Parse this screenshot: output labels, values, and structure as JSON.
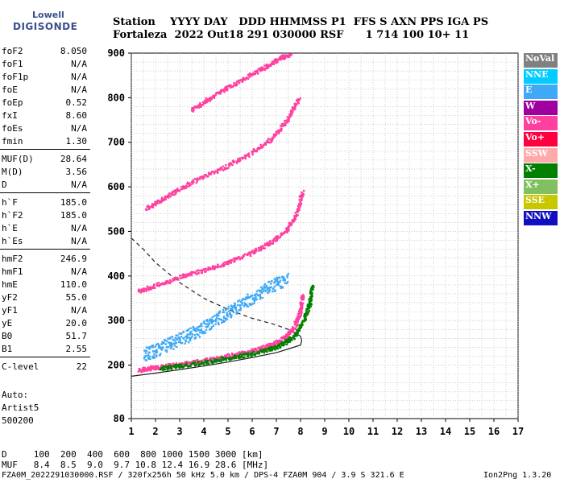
{
  "logo": {
    "line1": "Lowell",
    "line2": "DIGISONDE"
  },
  "header": {
    "columns": "Station    YYYY DAY   DDD HHMMSS P1  FFS S AXN PPS IGA PS",
    "values": "Fortaleza  2022 Out18 291 030000 RSF      1 714 100 10+ 11"
  },
  "params": [
    {
      "k": "foF2",
      "v": "8.050"
    },
    {
      "k": "foF1",
      "v": "N/A"
    },
    {
      "k": "foF1p",
      "v": "N/A"
    },
    {
      "k": "foE",
      "v": "N/A"
    },
    {
      "k": "foEp",
      "v": "0.52"
    },
    {
      "k": "fxI",
      "v": "8.60"
    },
    {
      "k": "foEs",
      "v": "N/A"
    },
    {
      "k": "fmin",
      "v": "1.30"
    },
    {
      "k": "MUF(D)",
      "v": "28.64"
    },
    {
      "k": "M(D)",
      "v": "3.56"
    },
    {
      "k": "D",
      "v": "N/A"
    },
    {
      "k": "h`F",
      "v": "185.0"
    },
    {
      "k": "h`F2",
      "v": "185.0"
    },
    {
      "k": "h`E",
      "v": "N/A"
    },
    {
      "k": "h`Es",
      "v": "N/A"
    },
    {
      "k": "hmF2",
      "v": "246.9"
    },
    {
      "k": "hmF1",
      "v": "N/A"
    },
    {
      "k": "hmE",
      "v": "110.0"
    },
    {
      "k": "yF2",
      "v": "55.0"
    },
    {
      "k": "yF1",
      "v": "N/A"
    },
    {
      "k": "yE",
      "v": "20.0"
    },
    {
      "k": "B0",
      "v": "51.7"
    },
    {
      "k": "B1",
      "v": "2.55"
    },
    {
      "k": "C-level",
      "v": "22"
    }
  ],
  "notes": {
    "auto": "Auto:",
    "artist": "Artist5",
    "code": "500200"
  },
  "legend": [
    {
      "label": "NoVal",
      "color": "#808080"
    },
    {
      "label": "NNE",
      "color": "#00ccff"
    },
    {
      "label": "E",
      "color": "#3fa9f5"
    },
    {
      "label": "W",
      "color": "#a000a0"
    },
    {
      "label": "Vo-",
      "color": "#ff40a0"
    },
    {
      "label": "Vo+",
      "color": "#ff0040"
    },
    {
      "label": "SSW",
      "color": "#ffaaaa"
    },
    {
      "label": "X-",
      "color": "#008000"
    },
    {
      "label": "X+",
      "color": "#80c060"
    },
    {
      "label": "SSE",
      "color": "#c8c800"
    },
    {
      "label": "NNW",
      "color": "#1010c0"
    }
  ],
  "footer": {
    "line1": "D     100  200  400  600  800 1000 1500 3000 [km]",
    "line2": "MUF   8.4  8.5  9.0  9.7 10.8 12.4 16.9 28.6 [MHz]",
    "bottom_left": "FZA0M_2022291030000.RSF / 320fx256h 50 kHz 5.0 km / DPS-4 FZA0M 904 / 3.9 S 321.6 E",
    "bottom_right": "Ion2Png 1.3.20"
  },
  "chart_data": {
    "type": "scatter",
    "title": "",
    "xlabel": "",
    "ylabel": "",
    "xlim": [
      1,
      17
    ],
    "ylim": [
      80,
      900
    ],
    "x_ticks": [
      1,
      2,
      3,
      4,
      5,
      6,
      7,
      8,
      9,
      10,
      11,
      12,
      13,
      14,
      15,
      16,
      17
    ],
    "y_ticks": [
      80,
      200,
      300,
      400,
      500,
      600,
      700,
      800,
      900
    ],
    "grid": true,
    "series": [
      {
        "name": "Vo-",
        "color": "#ff40a0",
        "x": [
          1.3,
          1.8,
          2.5,
          3.2,
          4.0,
          4.8,
          5.5,
          6.2,
          6.8,
          7.3,
          7.7,
          7.95,
          8.05
        ],
        "y": [
          190,
          195,
          200,
          205,
          212,
          220,
          228,
          237,
          248,
          262,
          285,
          320,
          360
        ]
      },
      {
        "name": "X-",
        "color": "#008000",
        "x": [
          2.2,
          3.0,
          4.0,
          5.0,
          5.8,
          6.6,
          7.2,
          7.7,
          8.1,
          8.35,
          8.45
        ],
        "y": [
          195,
          200,
          208,
          217,
          226,
          236,
          248,
          266,
          300,
          340,
          380
        ]
      },
      {
        "name": "E",
        "color": "#3fa9f5",
        "x": [
          1.5,
          2.0,
          2.6,
          3.2,
          3.8,
          4.4,
          5.0,
          5.6,
          6.2,
          6.8,
          7.4
        ],
        "y": [
          225,
          235,
          250,
          265,
          280,
          300,
          320,
          340,
          360,
          380,
          395
        ]
      },
      {
        "name": "Vo-",
        "color": "#ff40a0",
        "x": [
          1.3,
          2.0,
          3.0,
          4.0,
          5.0,
          6.0,
          6.8,
          7.4,
          7.8,
          8.05
        ],
        "y": [
          368,
          380,
          400,
          415,
          432,
          455,
          478,
          505,
          540,
          590
        ]
      },
      {
        "name": "Vo-",
        "color": "#ff40a0",
        "x": [
          1.6,
          2.3,
          3.0,
          4.0,
          5.0,
          6.0,
          6.8,
          7.4,
          7.9
        ],
        "y": [
          552,
          575,
          598,
          625,
          650,
          680,
          710,
          750,
          800
        ]
      },
      {
        "name": "Vo-",
        "color": "#ff40a0",
        "x": [
          3.5,
          4.2,
          5.0,
          5.8,
          6.5,
          7.1,
          7.6
        ],
        "y": [
          775,
          800,
          825,
          850,
          870,
          890,
          900
        ]
      }
    ],
    "curves": [
      {
        "style": "solid",
        "x": [
          1.0,
          2.0,
          3.0,
          4.0,
          5.0,
          6.0,
          7.0,
          7.6,
          8.0,
          8.05,
          8.0
        ],
        "y": [
          175,
          182,
          190,
          198,
          207,
          217,
          228,
          238,
          245,
          255,
          265
        ]
      },
      {
        "style": "dashed",
        "x": [
          1.0,
          1.5,
          2.0,
          3.0,
          4.0,
          5.0,
          6.0,
          7.0,
          7.6,
          8.0
        ],
        "y": [
          485,
          460,
          430,
          385,
          350,
          325,
          305,
          290,
          278,
          265
        ]
      }
    ]
  }
}
